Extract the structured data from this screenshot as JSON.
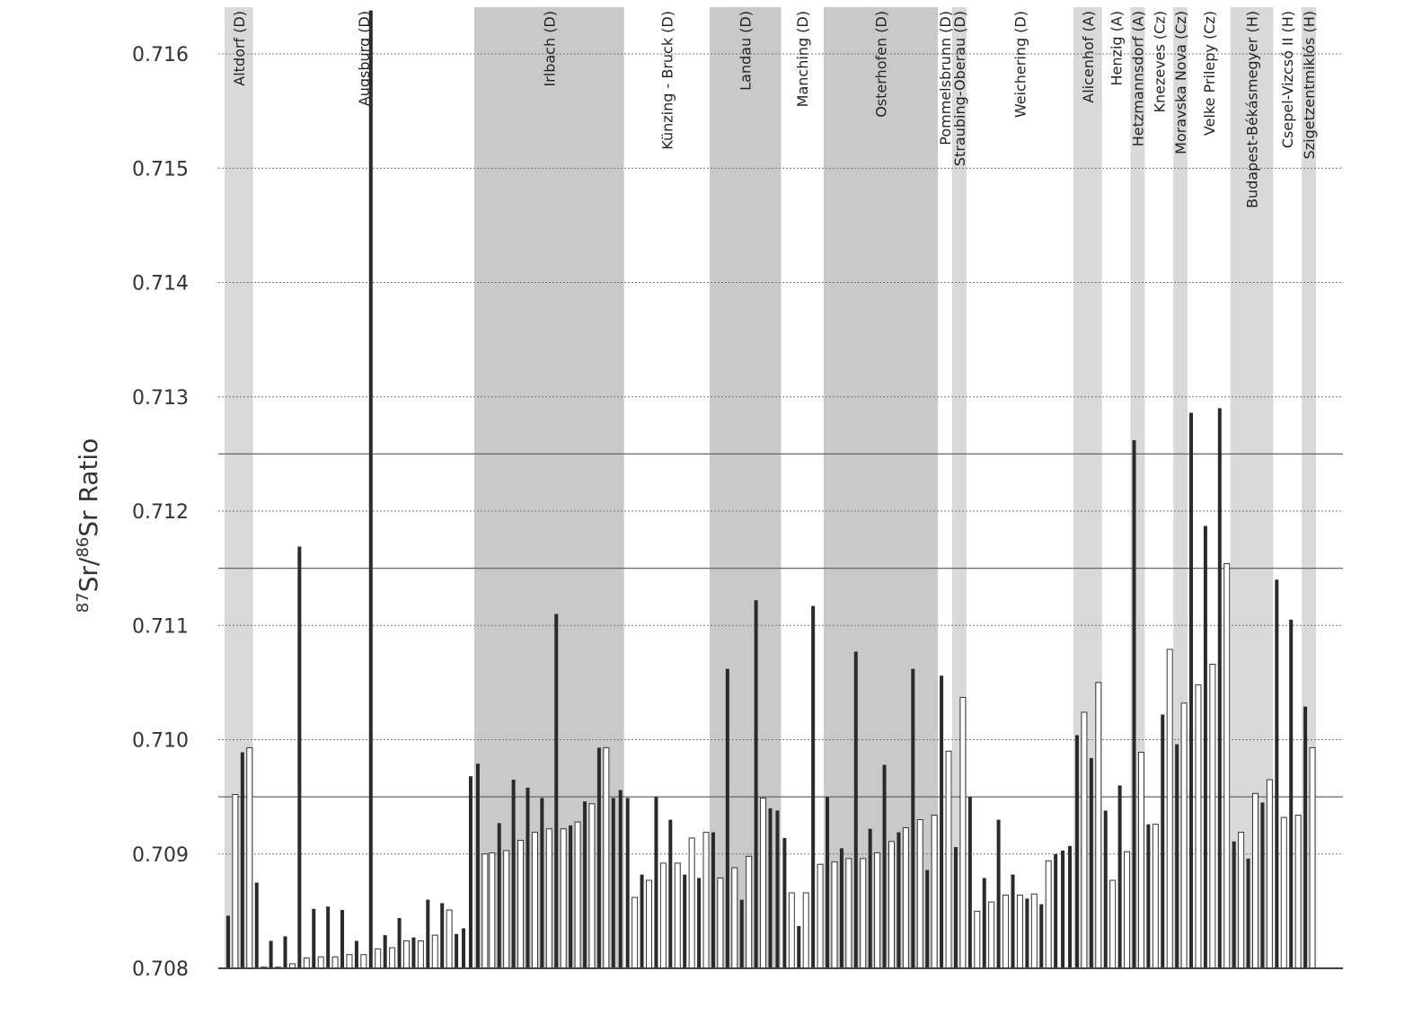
{
  "chart_data": {
    "type": "bar",
    "title": "",
    "xlabel": "",
    "ylabel": {
      "prefix_sup": "87",
      "base1": "Sr/",
      "mid_sup": "86",
      "base2": "Sr Ratio"
    },
    "ylim": [
      0.708,
      0.7164
    ],
    "yticks": [
      "0.708",
      "0.709",
      "0.710",
      "0.711",
      "0.712",
      "0.713",
      "0.714",
      "0.715",
      "0.716"
    ],
    "grid": true,
    "reference_lines": [
      0.7125,
      0.7115,
      0.7095
    ],
    "colors": {
      "dark_bar": "#2a2a2a",
      "light_bar": "#ffffff",
      "shade_dark": "#c9c9c9",
      "shade_light": "#d9d9d9"
    },
    "sites": [
      {
        "name": "Altdorf (D)",
        "shaded": "light",
        "bars": [
          [
            0.70846,
            "b"
          ],
          [
            0.70952,
            "w"
          ],
          [
            0.70989,
            "b"
          ],
          [
            0.70993,
            "w"
          ]
        ]
      },
      {
        "name": "Augsburg (D)",
        "shaded": "none",
        "bars": [
          [
            0.70875,
            "b"
          ],
          [
            0.70801,
            "w"
          ],
          [
            0.70824,
            "b"
          ],
          [
            0.70801,
            "w"
          ],
          [
            0.70828,
            "b"
          ],
          [
            0.70804,
            "w"
          ],
          [
            0.71169,
            "b"
          ],
          [
            0.70809,
            "w"
          ],
          [
            0.70852,
            "b"
          ],
          [
            0.7081,
            "w"
          ],
          [
            0.70854,
            "b"
          ],
          [
            0.7081,
            "w"
          ],
          [
            0.70851,
            "b"
          ],
          [
            0.70812,
            "w"
          ],
          [
            0.70824,
            "b"
          ],
          [
            0.70812,
            "w"
          ],
          [
            0.71638,
            "b"
          ],
          [
            0.70817,
            "w"
          ],
          [
            0.70829,
            "b"
          ],
          [
            0.70818,
            "w"
          ],
          [
            0.70844,
            "b"
          ],
          [
            0.70824,
            "w"
          ],
          [
            0.70827,
            "b"
          ],
          [
            0.70824,
            "w"
          ],
          [
            0.7086,
            "b"
          ],
          [
            0.70829,
            "w"
          ],
          [
            0.70857,
            "b"
          ],
          [
            0.70851,
            "w"
          ],
          [
            0.7083,
            "b"
          ],
          [
            0.70835,
            "b"
          ],
          [
            0.70968,
            "b"
          ]
        ]
      },
      {
        "name": "Irlbach (D)",
        "shaded": "dark",
        "bars": [
          [
            0.70979,
            "b"
          ],
          [
            0.709,
            "w"
          ],
          [
            0.70901,
            "w"
          ],
          [
            0.70927,
            "b"
          ],
          [
            0.70903,
            "w"
          ],
          [
            0.70965,
            "b"
          ],
          [
            0.70912,
            "w"
          ],
          [
            0.70958,
            "b"
          ],
          [
            0.70919,
            "w"
          ],
          [
            0.70949,
            "b"
          ],
          [
            0.70922,
            "w"
          ],
          [
            0.7111,
            "b"
          ],
          [
            0.70922,
            "w"
          ],
          [
            0.70925,
            "b"
          ],
          [
            0.70928,
            "w"
          ],
          [
            0.70946,
            "b"
          ],
          [
            0.70944,
            "w"
          ],
          [
            0.70993,
            "b"
          ],
          [
            0.70993,
            "w"
          ],
          [
            0.70949,
            "b"
          ],
          [
            0.70956,
            "b"
          ]
        ]
      },
      {
        "name": "Künzing - Bruck (D)",
        "shaded": "none",
        "bars": [
          [
            0.70949,
            "b"
          ],
          [
            0.70862,
            "w"
          ],
          [
            0.70882,
            "b"
          ],
          [
            0.70877,
            "w"
          ],
          [
            0.7095,
            "b"
          ],
          [
            0.70892,
            "w"
          ],
          [
            0.7093,
            "b"
          ],
          [
            0.70892,
            "w"
          ],
          [
            0.70882,
            "b"
          ],
          [
            0.70914,
            "w"
          ],
          [
            0.70879,
            "b"
          ],
          [
            0.70919,
            "w"
          ]
        ]
      },
      {
        "name": "Landau (D)",
        "shaded": "dark",
        "bars": [
          [
            0.70919,
            "b"
          ],
          [
            0.70879,
            "w"
          ],
          [
            0.71062,
            "b"
          ],
          [
            0.70888,
            "w"
          ],
          [
            0.7086,
            "b"
          ],
          [
            0.70898,
            "w"
          ],
          [
            0.71122,
            "b"
          ],
          [
            0.70949,
            "w"
          ],
          [
            0.7094,
            "b"
          ],
          [
            0.70938,
            "b"
          ]
        ]
      },
      {
        "name": "Manching (D)",
        "shaded": "none",
        "bars": [
          [
            0.70914,
            "b"
          ],
          [
            0.70866,
            "w"
          ],
          [
            0.70837,
            "b"
          ],
          [
            0.70866,
            "w"
          ],
          [
            0.71117,
            "b"
          ],
          [
            0.70891,
            "w"
          ]
        ]
      },
      {
        "name": "Osterhofen (D)",
        "shaded": "dark",
        "bars": [
          [
            0.7095,
            "b"
          ],
          [
            0.70893,
            "w"
          ],
          [
            0.70905,
            "b"
          ],
          [
            0.70896,
            "w"
          ],
          [
            0.71077,
            "b"
          ],
          [
            0.70896,
            "w"
          ],
          [
            0.70922,
            "b"
          ],
          [
            0.70901,
            "w"
          ],
          [
            0.70978,
            "b"
          ],
          [
            0.70911,
            "w"
          ],
          [
            0.70919,
            "b"
          ],
          [
            0.70923,
            "w"
          ],
          [
            0.71062,
            "b"
          ],
          [
            0.7093,
            "w"
          ],
          [
            0.70886,
            "b"
          ],
          [
            0.70934,
            "w"
          ]
        ]
      },
      {
        "name": "Pommelsbrunn (D)",
        "shaded": "none",
        "bars": [
          [
            0.71056,
            "b"
          ],
          [
            0.7099,
            "w"
          ]
        ]
      },
      {
        "name": "Straubing-Oberau (D)",
        "shaded": "light",
        "bars": [
          [
            0.70906,
            "b"
          ],
          [
            0.71037,
            "w"
          ]
        ]
      },
      {
        "name": "Weichering (D)",
        "shaded": "none",
        "bars": [
          [
            0.7095,
            "b"
          ],
          [
            0.7085,
            "w"
          ],
          [
            0.70879,
            "b"
          ],
          [
            0.70858,
            "w"
          ],
          [
            0.7093,
            "b"
          ],
          [
            0.70864,
            "w"
          ],
          [
            0.70882,
            "b"
          ],
          [
            0.70864,
            "w"
          ],
          [
            0.70861,
            "b"
          ],
          [
            0.70865,
            "w"
          ],
          [
            0.70856,
            "b"
          ],
          [
            0.70894,
            "w"
          ],
          [
            0.709,
            "b"
          ],
          [
            0.70903,
            "b"
          ],
          [
            0.70907,
            "b"
          ]
        ]
      },
      {
        "name": "Alicenhof (A)",
        "shaded": "light",
        "bars": [
          [
            0.71004,
            "b"
          ],
          [
            0.71024,
            "w"
          ],
          [
            0.70984,
            "b"
          ],
          [
            0.7105,
            "w"
          ]
        ]
      },
      {
        "name": "Henzig (A)",
        "shaded": "none",
        "bars": [
          [
            0.70938,
            "b"
          ],
          [
            0.70877,
            "w"
          ],
          [
            0.7096,
            "b"
          ],
          [
            0.70902,
            "w"
          ]
        ]
      },
      {
        "name": "Hetzmannsdorf (A)",
        "shaded": "light",
        "bars": [
          [
            0.71262,
            "b"
          ],
          [
            0.70989,
            "w"
          ]
        ]
      },
      {
        "name": "Knezeves (Cz)",
        "shaded": "none",
        "bars": [
          [
            0.70926,
            "b"
          ],
          [
            0.70926,
            "w"
          ],
          [
            0.71022,
            "b"
          ],
          [
            0.71079,
            "w"
          ]
        ]
      },
      {
        "name": "Moravska Nova (Cz)",
        "shaded": "light",
        "bars": [
          [
            0.70996,
            "b"
          ],
          [
            0.71032,
            "w"
          ]
        ]
      },
      {
        "name": "Velke Prilepy (Cz)",
        "shaded": "none",
        "bars": [
          [
            0.71286,
            "b"
          ],
          [
            0.71048,
            "w"
          ],
          [
            0.71187,
            "b"
          ],
          [
            0.71066,
            "w"
          ],
          [
            0.7129,
            "b"
          ],
          [
            0.71154,
            "w"
          ]
        ]
      },
      {
        "name": "Budapest-Békásmegyer (H)",
        "shaded": "light",
        "bars": [
          [
            0.70911,
            "b"
          ],
          [
            0.70919,
            "w"
          ],
          [
            0.70896,
            "b"
          ],
          [
            0.70953,
            "w"
          ],
          [
            0.70945,
            "b"
          ],
          [
            0.70965,
            "w"
          ]
        ]
      },
      {
        "name": "Csepel-Vizcsó II (H)",
        "shaded": "none",
        "bars": [
          [
            0.7114,
            "b"
          ],
          [
            0.70932,
            "w"
          ],
          [
            0.71105,
            "b"
          ],
          [
            0.70934,
            "w"
          ]
        ]
      },
      {
        "name": "Szigetzentmiklós (H)",
        "shaded": "light",
        "bars": [
          [
            0.71029,
            "b"
          ],
          [
            0.70993,
            "w"
          ]
        ]
      }
    ]
  }
}
